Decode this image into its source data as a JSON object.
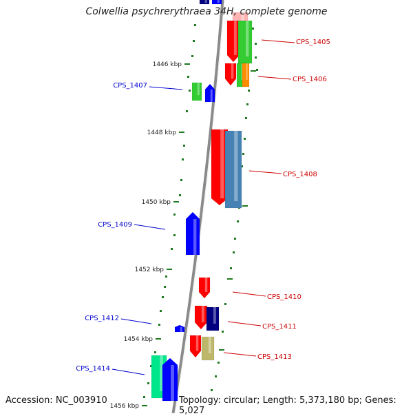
{
  "title": "Colwellia psychrerythraea 34H, complete genome",
  "footer": {
    "accession": "Accession: NC_003910",
    "topology": "Topology: circular; Length: 5,373,180 bp; Genes: 5,027"
  },
  "colors": {
    "backbone": "#8a8a8a",
    "ticks": "#1e7a1e",
    "forward_label": "#0000cc",
    "reverse_label": "#cc0000",
    "red": "#ff0000",
    "green": "#33cc33",
    "blue": "#0000ff",
    "navy": "#000080",
    "steelblue": "#4682b4",
    "orange": "#ff8c00",
    "khaki": "#bdb76b",
    "teal": "#00e68a",
    "pink": "#ffb3b3"
  },
  "scale_labels": [
    "1446 kbp",
    "1448 kbp",
    "1450 kbp",
    "1452 kbp",
    "1454 kbp",
    "1456 kbp"
  ],
  "gene_labels": [
    "CPS_1405",
    "CPS_1406",
    "CPS_1407",
    "CPS_1408",
    "CPS_1409",
    "CPS_1410",
    "CPS_1411",
    "CPS_1412",
    "CPS_1413",
    "CPS_1414"
  ]
}
